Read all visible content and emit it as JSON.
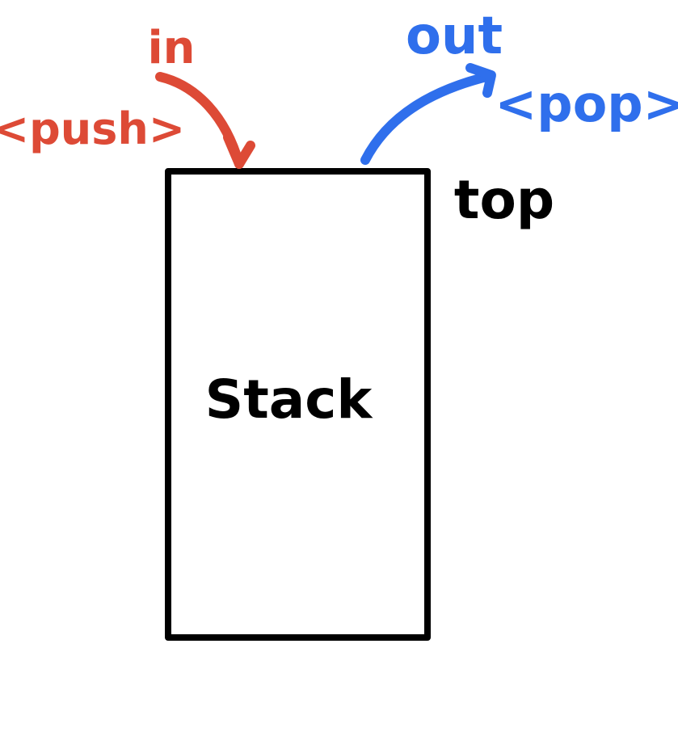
{
  "labels": {
    "in_label": "in",
    "push_label": "<push>",
    "out_label": "out",
    "pop_label": "<pop>",
    "top_label": "top",
    "stack_label": "Stack"
  },
  "colors": {
    "push": "#dd4a36",
    "pop": "#2f6fec",
    "ink": "#000000",
    "background": "#ffffff"
  }
}
